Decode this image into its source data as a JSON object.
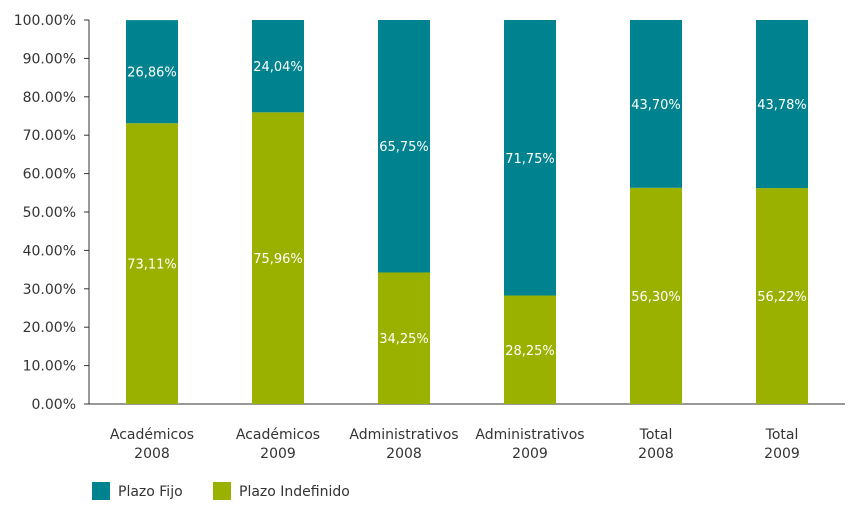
{
  "colors": {
    "plazo_fijo": "#00838F",
    "plazo_indefinido": "#9BB100",
    "axis": "#333333",
    "label_text": "#ffffff"
  },
  "chart_data": {
    "type": "bar",
    "stacked": true,
    "title": "",
    "xlabel": "",
    "ylabel": "",
    "ylim": [
      0,
      100
    ],
    "y_ticks": [
      "0.00%",
      "10.00%",
      "20.00%",
      "30.00%",
      "40.00%",
      "50.00%",
      "60.00%",
      "70.00%",
      "80.00%",
      "90.00%",
      "100.00%"
    ],
    "categories": [
      [
        "Académicos",
        "2008"
      ],
      [
        "Académicos",
        "2009"
      ],
      [
        "Administrativos",
        "2008"
      ],
      [
        "Administrativos",
        "2009"
      ],
      [
        "Total",
        "2008"
      ],
      [
        "Total",
        "2009"
      ]
    ],
    "series": [
      {
        "name": "Plazo Indefinido",
        "values": [
          73.11,
          75.96,
          34.25,
          28.25,
          56.3,
          56.22
        ],
        "labels": [
          "73,11%",
          "75,96%",
          "34,25%",
          "28,25%",
          "56,30%",
          "56,22%"
        ],
        "color_key": "plazo_indefinido"
      },
      {
        "name": "Plazo Fijo",
        "values": [
          26.86,
          24.04,
          65.75,
          71.75,
          43.7,
          43.78
        ],
        "labels": [
          "26,86%",
          "24,04%",
          "65,75%",
          "71,75%",
          "43,70%",
          "43,78%"
        ],
        "color_key": "plazo_fijo"
      }
    ],
    "legend": {
      "position": "bottom-left",
      "entries": [
        {
          "name": "Plazo Fijo",
          "color_key": "plazo_fijo"
        },
        {
          "name": "Plazo Indefinido",
          "color_key": "plazo_indefinido"
        }
      ]
    },
    "grid": false
  }
}
